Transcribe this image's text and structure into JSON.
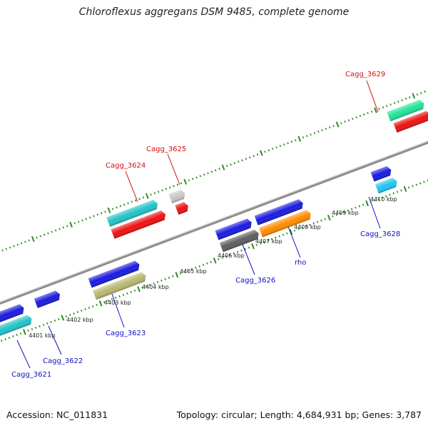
{
  "title": "Chloroflexus aggregans DSM 9485, complete genome",
  "footer": {
    "accession": "Accession: NC_011831",
    "summary": "Topology: circular; Length: 4,684,931 bp; Genes: 3,787"
  },
  "colors": {
    "backbone": "#8c8c8c",
    "tick_green": "#2b8a1e",
    "label_red": "#d01010",
    "label_blue": "#1010c0"
  },
  "kbp_labels": [
    "4401 kbp",
    "4402 kbp",
    "4403 kbp",
    "4404 kbp",
    "4405 kbp",
    "4406 kbp",
    "4407 kbp",
    "4408 kbp",
    "4409 kbp",
    "4410 kbp"
  ],
  "gene_labels": {
    "Cagg_3621": "Cagg_3621",
    "Cagg_3622": "Cagg_3622",
    "Cagg_3623": "Cagg_3623",
    "Cagg_3624": "Cagg_3624",
    "Cagg_3625": "Cagg_3625",
    "Cagg_3626": "Cagg_3626",
    "rho": "rho",
    "Cagg_3628": "Cagg_3628",
    "Cagg_3629": "Cagg_3629"
  }
}
